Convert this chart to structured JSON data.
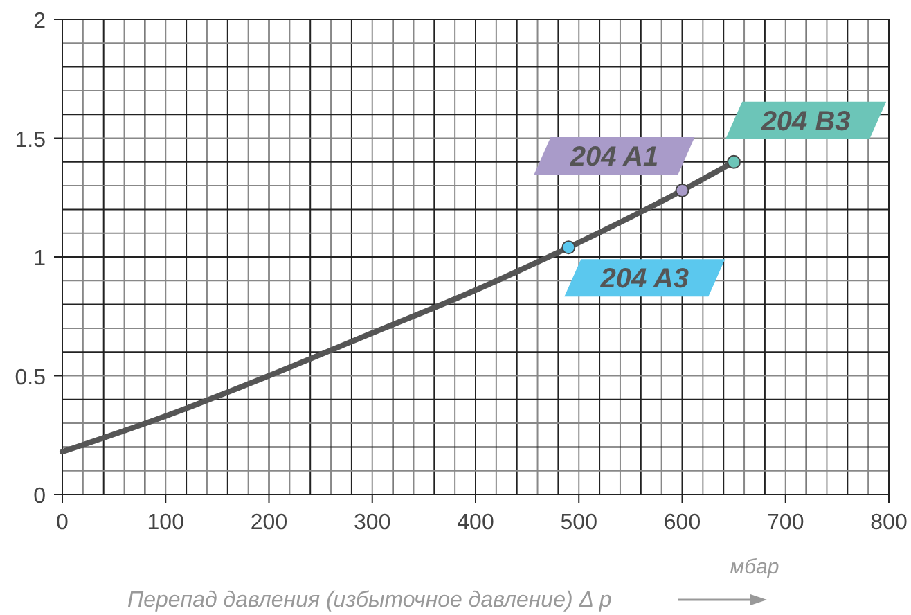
{
  "chart_data": {
    "type": "line",
    "xlabel": "Перепад давления (избыточное давление) Δ p",
    "xlim": [
      0,
      800
    ],
    "ylim": [
      0,
      2
    ],
    "xticks": [
      0,
      {
        "value": 20,
        "label": null
      },
      {
        "value": 40,
        "label": null
      },
      {
        "value": 60,
        "label": null
      },
      {
        "value": 80,
        "label": null
      },
      100,
      {
        "value": 120,
        "label": null
      },
      {
        "value": 140,
        "label": null
      },
      {
        "value": 160,
        "label": null
      },
      {
        "value": 180,
        "label": null
      },
      200,
      {
        "value": 220,
        "label": null
      },
      {
        "value": 240,
        "label": null
      },
      {
        "value": 260,
        "label": null
      },
      {
        "value": 280,
        "label": null
      },
      300,
      {
        "value": 320,
        "label": null
      },
      {
        "value": 340,
        "label": null
      },
      {
        "value": 360,
        "label": null
      },
      {
        "value": 380,
        "label": null
      },
      400,
      {
        "value": 420,
        "label": null
      },
      {
        "value": 440,
        "label": null
      },
      {
        "value": 460,
        "label": null
      },
      {
        "value": 480,
        "label": null
      },
      500,
      {
        "value": 520,
        "label": null
      },
      {
        "value": 540,
        "label": null
      },
      {
        "value": 560,
        "label": null
      },
      {
        "value": 580,
        "label": null
      },
      600,
      {
        "value": 620,
        "label": null
      },
      {
        "value": 640,
        "label": null
      },
      {
        "value": 660,
        "label": null
      },
      {
        "value": 680,
        "label": null
      },
      700,
      {
        "value": 720,
        "label": null
      },
      {
        "value": 740,
        "label": null
      },
      {
        "value": 760,
        "label": null
      },
      {
        "value": 780,
        "label": null
      },
      800
    ],
    "yticks": [
      0,
      {
        "value": 0.1,
        "label": null
      },
      {
        "value": 0.2,
        "label": null
      },
      {
        "value": 0.3,
        "label": null
      },
      {
        "value": 0.4,
        "label": null
      },
      0.5,
      {
        "value": 0.6,
        "label": null
      },
      {
        "value": 0.7,
        "label": null
      },
      {
        "value": 0.8,
        "label": null
      },
      {
        "value": 0.9,
        "label": null
      },
      1,
      {
        "value": 1.1,
        "label": null
      },
      {
        "value": 1.2,
        "label": null
      },
      {
        "value": 1.3,
        "label": null
      },
      {
        "value": 1.4,
        "label": null
      },
      1.5,
      {
        "value": 1.6,
        "label": null
      },
      {
        "value": 1.7,
        "label": null
      },
      {
        "value": 1.8,
        "label": null
      },
      {
        "value": 1.9,
        "label": null
      },
      2
    ],
    "grid": true,
    "series": [
      {
        "color": "#555555",
        "marker": "none",
        "x": [
          0,
          100,
          200,
          300,
          400,
          490,
          600,
          650
        ],
        "values": [
          0.18,
          0.33,
          0.5,
          0.68,
          0.86,
          1.04,
          1.28,
          1.4
        ]
      },
      {
        "type": "scatter",
        "marker": "circle",
        "x": [
          490,
          600,
          650
        ],
        "values": [
          1.04,
          1.28,
          1.4
        ],
        "colors": [
          "#5bc8ee",
          "#a99bc9",
          "#6cc5b8"
        ]
      }
    ],
    "annotations": [
      {
        "text": "204 A3",
        "x": 490,
        "y": 1.04
      },
      {
        "text": "204 A1",
        "x": 600,
        "y": 1.28
      },
      {
        "text": "204 B3",
        "x": 650,
        "y": 1.4
      },
      "мбар"
    ]
  }
}
